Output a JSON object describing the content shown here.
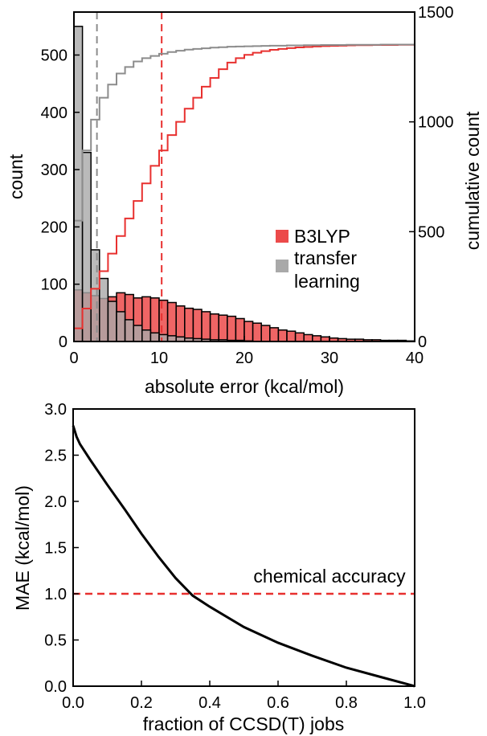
{
  "colors": {
    "b3lyp": "#e8302f",
    "b3lyp_fill": "#ec4a4a",
    "transfer": "#8c8c8c",
    "transfer_fill": "#a9a9a9",
    "mae_line": "#000000",
    "chem_accuracy": "#e8302f"
  },
  "chart_data": [
    {
      "type": "bar",
      "xlabel": "absolute error (kcal/mol)",
      "ylabel": "count",
      "ylabel_right": "cumulative count",
      "xlim": [
        0,
        40
      ],
      "ylim": [
        0,
        575
      ],
      "ylim_right": [
        0,
        1500
      ],
      "xticks": [
        "0",
        "10",
        "20",
        "30",
        "40"
      ],
      "yticks": [
        "0",
        "100",
        "200",
        "300",
        "400",
        "500"
      ],
      "yticks_right": [
        "0",
        "500",
        "1000",
        "1500"
      ],
      "bin_width": 1,
      "legend": {
        "placement": "center-right",
        "entries": [
          "B3LYP",
          "transfer\nlearning"
        ]
      },
      "series": [
        {
          "name": "B3LYP",
          "type": "histogram",
          "bin_starts": [
            0,
            1,
            2,
            3,
            4,
            5,
            6,
            7,
            8,
            9,
            10,
            11,
            12,
            13,
            14,
            15,
            16,
            17,
            18,
            19,
            20,
            21,
            22,
            23,
            24,
            25,
            26,
            27,
            28,
            29,
            30,
            31,
            32,
            33,
            34,
            35,
            36,
            37,
            38,
            39
          ],
          "values": [
            90,
            85,
            80,
            75,
            78,
            85,
            82,
            76,
            78,
            76,
            72,
            68,
            62,
            58,
            56,
            52,
            48,
            46,
            44,
            40,
            35,
            32,
            28,
            24,
            20,
            18,
            15,
            12,
            10,
            8,
            6,
            5,
            4,
            4,
            3,
            3,
            2,
            2,
            2,
            1
          ]
        },
        {
          "name": "transfer learning",
          "type": "histogram",
          "bin_starts": [
            0,
            1,
            2,
            3,
            4,
            5,
            6,
            7,
            8,
            9,
            10,
            11,
            12,
            13,
            14,
            15,
            16,
            17,
            18,
            19,
            20
          ],
          "values": [
            550,
            330,
            160,
            110,
            70,
            52,
            38,
            28,
            20,
            15,
            12,
            10,
            8,
            6,
            5,
            4,
            3,
            3,
            2,
            2,
            1
          ]
        },
        {
          "name": "B3LYP cumulative",
          "type": "cumulative-step",
          "axis": "right",
          "x": [
            0,
            1,
            2,
            3,
            4,
            5,
            6,
            7,
            8,
            9,
            10,
            11,
            12,
            13,
            14,
            15,
            16,
            17,
            18,
            19,
            20,
            21,
            22,
            23,
            24,
            25,
            26,
            27,
            28,
            29,
            30,
            31,
            32,
            33,
            34,
            35,
            36,
            37,
            38,
            39,
            40
          ],
          "y": [
            60,
            150,
            240,
            320,
            400,
            480,
            560,
            640,
            720,
            800,
            870,
            940,
            1000,
            1060,
            1110,
            1160,
            1200,
            1240,
            1270,
            1290,
            1305,
            1315,
            1322,
            1328,
            1332,
            1336,
            1339,
            1341,
            1343,
            1345,
            1346,
            1347,
            1348,
            1349,
            1349,
            1350,
            1350,
            1350,
            1351,
            1351,
            1352
          ]
        },
        {
          "name": "transfer learning cumulative",
          "type": "cumulative-step",
          "axis": "right",
          "x": [
            0,
            1,
            2,
            3,
            4,
            5,
            6,
            7,
            8,
            9,
            10,
            11,
            12,
            13,
            14,
            15,
            16,
            17,
            18,
            19,
            20,
            21,
            22,
            23,
            24,
            25,
            26,
            27,
            28,
            29,
            30,
            31,
            32,
            33,
            34,
            35,
            36,
            37,
            38,
            39,
            40
          ],
          "y": [
            550,
            870,
            1010,
            1110,
            1170,
            1220,
            1250,
            1275,
            1290,
            1300,
            1310,
            1318,
            1324,
            1329,
            1332,
            1335,
            1338,
            1340,
            1342,
            1343,
            1344,
            1345,
            1346,
            1347,
            1347,
            1348,
            1348,
            1349,
            1349,
            1350,
            1350,
            1350,
            1351,
            1351,
            1351,
            1351,
            1352,
            1352,
            1352,
            1352,
            1352
          ]
        }
      ],
      "vlines": [
        {
          "x": 2.7,
          "color": "#8c8c8c",
          "style": "dashed"
        },
        {
          "x": 10.3,
          "color": "#e8302f",
          "style": "dashed"
        }
      ]
    },
    {
      "type": "line",
      "xlabel": "fraction of CCSD(T) jobs",
      "ylabel": "MAE (kcal/mol)",
      "xlim": [
        0,
        1
      ],
      "ylim": [
        0,
        3
      ],
      "xticks": [
        "0.0",
        "0.2",
        "0.4",
        "0.6",
        "0.8",
        "1.0"
      ],
      "yticks": [
        "0.0",
        "0.5",
        "1.0",
        "1.5",
        "2.0",
        "2.5",
        "3.0"
      ],
      "series": [
        {
          "x": [
            0.0,
            0.01,
            0.02,
            0.05,
            0.1,
            0.15,
            0.2,
            0.25,
            0.3,
            0.35,
            0.4,
            0.5,
            0.6,
            0.7,
            0.8,
            0.9,
            1.0
          ],
          "y": [
            2.82,
            2.7,
            2.62,
            2.45,
            2.18,
            1.92,
            1.65,
            1.4,
            1.17,
            0.98,
            0.86,
            0.64,
            0.47,
            0.33,
            0.2,
            0.1,
            0.0
          ]
        }
      ],
      "hline": {
        "y": 1.0,
        "label": "chemical accuracy",
        "color": "#e8302f",
        "style": "dashed"
      }
    }
  ]
}
